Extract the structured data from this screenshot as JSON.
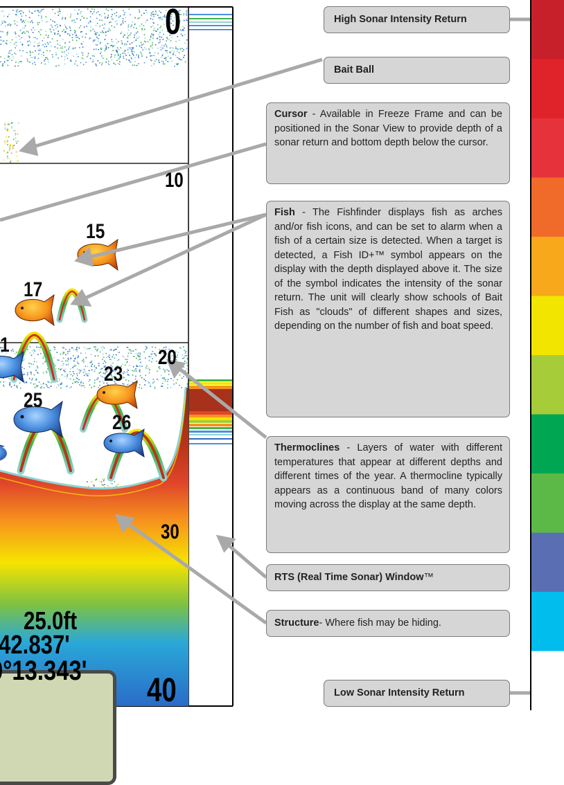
{
  "depth_scale": {
    "d0": "0",
    "d10": "10",
    "d20": "20",
    "d30": "30",
    "d40": "40"
  },
  "fish_targets": [
    {
      "depth_label": "15"
    },
    {
      "depth_label": "17"
    },
    {
      "depth_label": "1"
    },
    {
      "depth_label": "23"
    },
    {
      "depth_label": "25"
    },
    {
      "depth_label": "26"
    }
  ],
  "info_box": {
    "depth": "25.0ft",
    "latitude": "42.837'",
    "longitude": "0°13.343'"
  },
  "callouts": {
    "high_intensity": {
      "title": "High Sonar Intensity Return"
    },
    "bait_ball": {
      "title": "Bait Ball"
    },
    "cursor": {
      "title": "Cursor",
      "text": " - Available in Freeze Frame and can be positioned in the Sonar View to provide depth of a sonar return and bottom depth below the cursor."
    },
    "fish": {
      "title": "Fish",
      "text": " - The Fishfinder displays fish as arches and/or fish icons, and can be set to alarm when a fish of a certain size is detected. When a target is detected, a Fish ID+™ symbol appears on the display with the depth displayed above it. The size of the symbol indicates the intensity of the sonar return. The unit will clearly show schools of Bait Fish as \"clouds\" of different shapes and sizes, depending on the number of fish and boat speed."
    },
    "thermoclines": {
      "title": "Thermoclines",
      "text": " - Layers of water with different temperatures that appear at different depths and different times of the year. A thermocline typically appears as a continuous band of many colors moving across the display at the same depth."
    },
    "rts": {
      "title": "RTS (Real Time Sonar) Window",
      "suffix": "™"
    },
    "structure": {
      "title": "Structure",
      "text": " - Where fish may be hiding."
    },
    "low_intensity": {
      "title": "Low Sonar Intensity Return"
    }
  },
  "color_bar": [
    "#c8202a",
    "#e0232b",
    "#e6323a",
    "#f06a2a",
    "#f7a81b",
    "#f2e500",
    "#a6cc3a",
    "#00a651",
    "#5cb947",
    "#5a6fb3",
    "#00bdee",
    "#ffffff"
  ]
}
